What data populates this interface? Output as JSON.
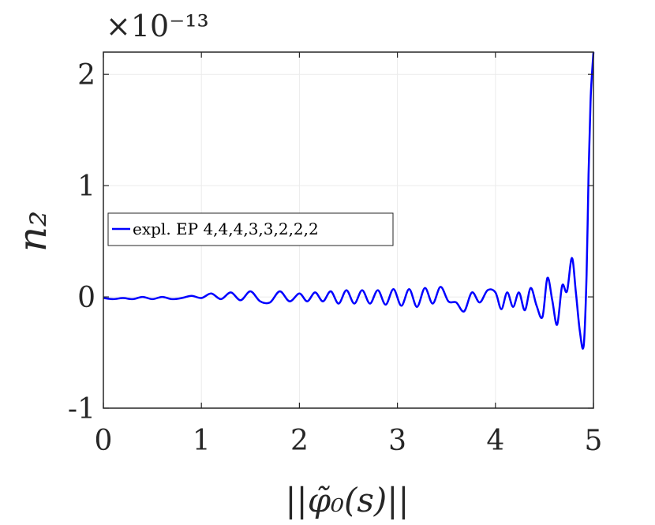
{
  "chart_data": {
    "type": "line",
    "xlabel": "||φ̃₀(s)||",
    "ylabel": "n₂",
    "y_exponent_label": "×10⁻¹³",
    "xlim": [
      0,
      5
    ],
    "ylim": [
      -1,
      2.2
    ],
    "x_ticks": [
      "0",
      "1",
      "2",
      "3",
      "4",
      "5"
    ],
    "y_ticks": [
      "-1",
      "0",
      "1",
      "2"
    ],
    "grid": true,
    "legend_position": "center-left",
    "colors": {
      "series": "#0000ff",
      "axis": "#262626",
      "grid": "#ebebeb"
    },
    "series": [
      {
        "name": "expl. EP 4,4,4,3,3,2,2,2",
        "x": [
          0.0,
          0.1,
          0.2,
          0.3,
          0.4,
          0.5,
          0.6,
          0.7,
          0.8,
          0.9,
          1.0,
          1.1,
          1.2,
          1.3,
          1.4,
          1.5,
          1.6,
          1.7,
          1.8,
          1.9,
          2.0,
          2.08,
          2.16,
          2.24,
          2.32,
          2.4,
          2.48,
          2.56,
          2.64,
          2.72,
          2.8,
          2.88,
          2.96,
          3.04,
          3.12,
          3.2,
          3.28,
          3.36,
          3.44,
          3.52,
          3.6,
          3.68,
          3.76,
          3.84,
          3.92,
          4.0,
          4.06,
          4.12,
          4.18,
          4.24,
          4.3,
          4.36,
          4.42,
          4.48,
          4.53,
          4.58,
          4.63,
          4.68,
          4.73,
          4.78,
          4.82,
          4.86,
          4.9,
          4.93,
          4.95,
          4.97,
          4.985,
          5.0
        ],
        "y": [
          -0.01,
          -0.02,
          -0.01,
          -0.02,
          0.0,
          -0.02,
          0.0,
          -0.02,
          -0.01,
          0.01,
          -0.01,
          0.03,
          -0.02,
          0.04,
          -0.03,
          0.05,
          -0.04,
          -0.05,
          0.05,
          -0.04,
          0.03,
          -0.04,
          0.04,
          -0.04,
          0.05,
          -0.06,
          0.06,
          -0.06,
          0.06,
          -0.06,
          0.06,
          -0.07,
          0.07,
          -0.08,
          0.07,
          -0.09,
          0.08,
          -0.06,
          0.09,
          -0.04,
          -0.05,
          -0.13,
          0.04,
          -0.05,
          0.06,
          0.04,
          -0.11,
          0.04,
          -0.09,
          0.04,
          -0.12,
          0.08,
          -0.08,
          -0.18,
          0.17,
          -0.03,
          -0.25,
          0.1,
          0.05,
          0.35,
          0.05,
          -0.3,
          -0.44,
          0.2,
          1.1,
          1.75,
          2.0,
          2.2
        ]
      }
    ]
  }
}
